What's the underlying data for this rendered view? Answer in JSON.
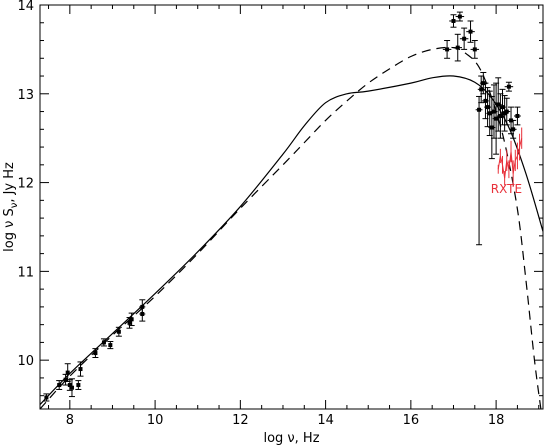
{
  "chart_data": {
    "type": "scatter",
    "title": "",
    "xlabel": "log ν,   Hz",
    "ylabel": "log ν S",
    "ylabel_subscript": "ν",
    "ylabel_suffix": ",   Jy Hz",
    "xlim": [
      7.3,
      19.1
    ],
    "ylim": [
      9.45,
      14.0
    ],
    "xticks": [
      8,
      10,
      12,
      14,
      16,
      18
    ],
    "yticks": [
      10,
      11,
      12,
      13,
      14
    ],
    "grid": false,
    "annotation": {
      "text": "RXTE",
      "color": "#e8303a",
      "x": 18.25,
      "y": 11.93
    },
    "series": [
      {
        "kind": "points",
        "color": "#000000",
        "points": [
          {
            "x": 7.45,
            "y": 9.58,
            "err": 0.04
          },
          {
            "x": 7.75,
            "y": 9.72,
            "err": 0.05
          },
          {
            "x": 7.9,
            "y": 9.78,
            "err": 0.06
          },
          {
            "x": 7.95,
            "y": 9.86,
            "err": 0.1
          },
          {
            "x": 8.0,
            "y": 9.72,
            "err": 0.06
          },
          {
            "x": 8.05,
            "y": 9.69,
            "err": 0.1
          },
          {
            "x": 8.2,
            "y": 9.72,
            "err": 0.05
          },
          {
            "x": 8.25,
            "y": 9.9,
            "err": 0.08
          },
          {
            "x": 8.6,
            "y": 10.08,
            "err": 0.05
          },
          {
            "x": 8.8,
            "y": 10.2,
            "err": 0.04
          },
          {
            "x": 8.95,
            "y": 10.17,
            "err": 0.04
          },
          {
            "x": 9.15,
            "y": 10.32,
            "err": 0.05
          },
          {
            "x": 9.4,
            "y": 10.42,
            "err": 0.06
          },
          {
            "x": 9.45,
            "y": 10.46,
            "err": 0.07
          },
          {
            "x": 9.7,
            "y": 10.52,
            "err": 0.08
          },
          {
            "x": 9.7,
            "y": 10.6,
            "err": 0.08
          },
          {
            "x": 16.85,
            "y": 13.5,
            "err": 0.1,
            "xerr": 0.1
          },
          {
            "x": 17.0,
            "y": 13.82,
            "err": 0.07,
            "xerr": 0.1
          },
          {
            "x": 17.1,
            "y": 13.52,
            "err": 0.15,
            "xerr": 0.1
          },
          {
            "x": 17.15,
            "y": 13.87,
            "err": 0.05,
            "xerr": 0.1
          },
          {
            "x": 17.25,
            "y": 13.62,
            "err": 0.12,
            "xerr": 0.1
          },
          {
            "x": 17.4,
            "y": 13.7,
            "err": 0.12,
            "xerr": 0.1
          },
          {
            "x": 17.5,
            "y": 13.5,
            "err": 0.1,
            "xerr": 0.1
          },
          {
            "x": 17.6,
            "y": 12.82,
            "err": 0.15,
            "err_low": 1.52,
            "xerr": 0.08
          },
          {
            "x": 17.65,
            "y": 13.05,
            "err": 0.15,
            "xerr": 0.08
          },
          {
            "x": 17.7,
            "y": 13.12,
            "err": 0.12,
            "xerr": 0.08
          },
          {
            "x": 17.75,
            "y": 12.92,
            "err": 0.2,
            "xerr": 0.08
          },
          {
            "x": 17.8,
            "y": 12.85,
            "err": 0.22,
            "xerr": 0.08
          },
          {
            "x": 17.85,
            "y": 12.78,
            "err": 0.25,
            "xerr": 0.08
          },
          {
            "x": 17.9,
            "y": 12.62,
            "err": 0.35,
            "xerr": 0.08
          },
          {
            "x": 17.95,
            "y": 12.8,
            "err": 0.3,
            "xerr": 0.08
          },
          {
            "x": 18.0,
            "y": 12.72,
            "err": 0.4,
            "xerr": 0.08
          },
          {
            "x": 18.05,
            "y": 12.88,
            "err": 0.3,
            "xerr": 0.08
          },
          {
            "x": 18.1,
            "y": 12.75,
            "err": 0.25,
            "xerr": 0.08
          },
          {
            "x": 18.15,
            "y": 12.85,
            "err": 0.2,
            "xerr": 0.08
          },
          {
            "x": 18.2,
            "y": 12.78,
            "err": 0.2,
            "xerr": 0.08
          },
          {
            "x": 18.25,
            "y": 12.8,
            "err": 0.15,
            "xerr": 0.08
          },
          {
            "x": 18.3,
            "y": 13.08,
            "err": 0.05,
            "xerr": 0.1
          },
          {
            "x": 18.35,
            "y": 12.7,
            "err": 0.15,
            "xerr": 0.08
          },
          {
            "x": 18.4,
            "y": 12.6,
            "err": 0.1,
            "xerr": 0.08
          },
          {
            "x": 18.5,
            "y": 12.75,
            "err": 0.1,
            "xerr": 0.08
          }
        ]
      },
      {
        "kind": "line",
        "name": "",
        "style": "solid",
        "color": "#000000",
        "x": [
          7.3,
          8,
          9,
          10,
          11,
          12,
          13,
          13.5,
          14,
          14.5,
          15,
          16,
          16.5,
          17,
          17.5,
          17.9,
          18.3,
          18.7,
          19.1
        ],
        "y": [
          9.5,
          9.85,
          10.3,
          10.75,
          11.22,
          11.73,
          12.32,
          12.64,
          12.9,
          13.0,
          13.03,
          13.12,
          13.18,
          13.2,
          13.13,
          12.95,
          12.62,
          12.1,
          11.45
        ]
      },
      {
        "kind": "line",
        "name": "",
        "style": "dashed",
        "color": "#000000",
        "x": [
          7.3,
          8,
          9,
          10,
          11,
          12,
          13,
          13.5,
          14,
          14.5,
          15,
          15.5,
          16,
          16.5,
          17,
          17.3,
          17.6,
          17.9,
          18.2,
          18.5,
          18.7,
          18.9,
          19.05
        ],
        "y": [
          9.45,
          9.82,
          10.28,
          10.72,
          11.2,
          11.71,
          12.2,
          12.45,
          12.7,
          12.92,
          13.12,
          13.28,
          13.42,
          13.5,
          13.52,
          13.45,
          13.3,
          12.95,
          12.45,
          11.7,
          10.9,
          10.0,
          9.45
        ]
      },
      {
        "kind": "band",
        "name": "RXTE",
        "color": "#e8303a",
        "x": [
          18.05,
          18.1,
          18.15,
          18.2,
          18.25,
          18.3,
          18.35,
          18.4,
          18.45,
          18.5,
          18.55,
          18.6
        ],
        "y": [
          12.15,
          12.3,
          12.2,
          12.05,
          12.25,
          12.15,
          12.35,
          12.1,
          12.25,
          12.3,
          12.4,
          12.5
        ],
        "err": [
          0.05,
          0.08,
          0.1,
          0.08,
          0.12,
          0.1,
          0.12,
          0.15,
          0.12,
          0.15,
          0.15,
          0.12
        ]
      }
    ]
  }
}
